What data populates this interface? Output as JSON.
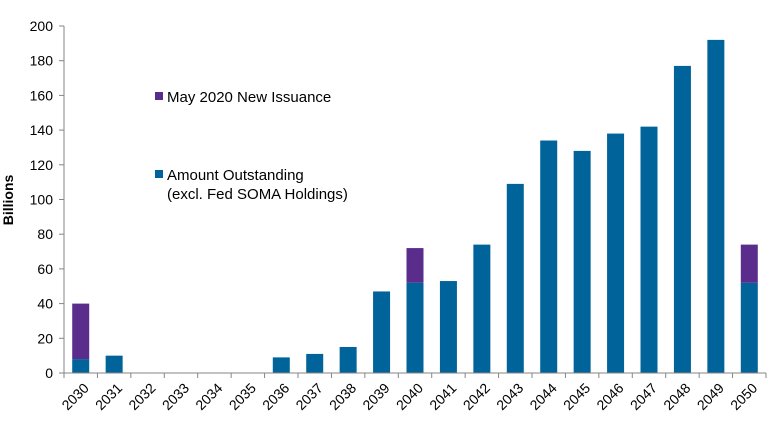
{
  "chart_data": {
    "type": "bar",
    "stacked": true,
    "categories": [
      "2030",
      "2031",
      "2032",
      "2033",
      "2034",
      "2035",
      "2036",
      "2037",
      "2038",
      "2039",
      "2040",
      "2041",
      "2042",
      "2043",
      "2044",
      "2045",
      "2046",
      "2047",
      "2048",
      "2049",
      "2050"
    ],
    "series": [
      {
        "name": "Amount Outstanding (excl. Fed SOMA Holdings)",
        "legend_lines": [
          "Amount Outstanding",
          "(excl. Fed SOMA Holdings)"
        ],
        "color": "#00649a",
        "values": [
          8,
          10,
          0,
          0,
          0,
          0,
          9,
          11,
          15,
          47,
          52,
          53,
          74,
          109,
          134,
          128,
          138,
          142,
          177,
          192,
          52
        ]
      },
      {
        "name": "May 2020 New Issuance",
        "legend_lines": [
          "May 2020 New Issuance"
        ],
        "color": "#5a2d8c",
        "values": [
          32,
          0,
          0,
          0,
          0,
          0,
          0,
          0,
          0,
          0,
          20,
          0,
          0,
          0,
          0,
          0,
          0,
          0,
          0,
          0,
          22
        ]
      }
    ],
    "ylabel": "Billions",
    "xlabel": "",
    "ylim": [
      0,
      200
    ],
    "yticks": [
      0,
      20,
      40,
      60,
      80,
      100,
      120,
      140,
      160,
      180,
      200
    ],
    "grid": false,
    "legend_position": "upper-left inside plot"
  }
}
